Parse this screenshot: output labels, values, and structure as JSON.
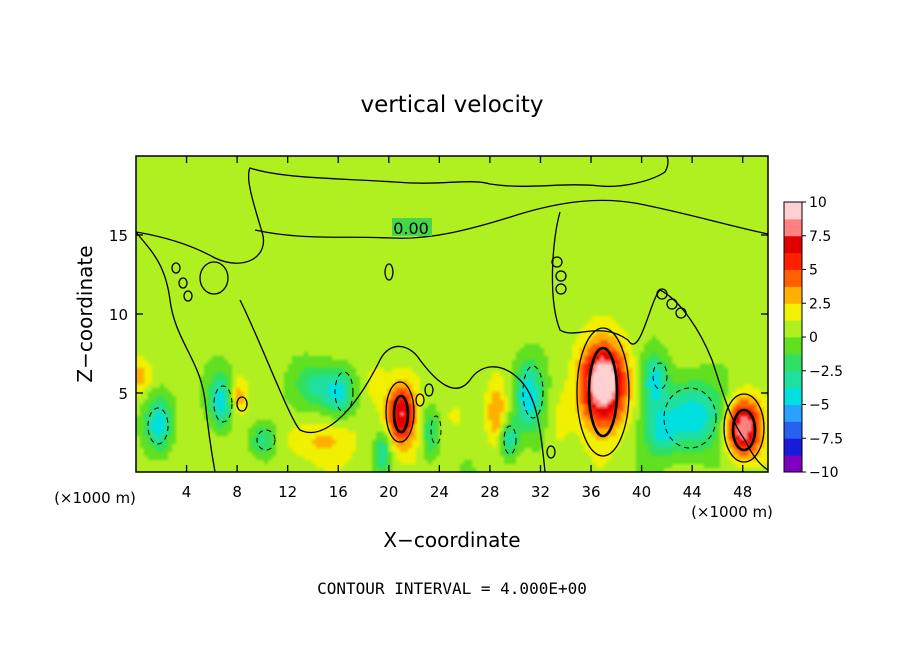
{
  "chart_data": {
    "type": "heatmap",
    "title": "vertical velocity",
    "xlabel": "X−coordinate",
    "ylabel": "Z−coordinate",
    "x_unit_label": "(×1000 m)",
    "x_ticks": [
      4,
      8,
      12,
      16,
      20,
      24,
      28,
      32,
      36,
      40,
      44,
      48
    ],
    "y_ticks": [
      5,
      10,
      15
    ],
    "xlim": [
      0,
      50
    ],
    "ylim": [
      0,
      20
    ],
    "colorbar": {
      "ticks": [
        "10",
        "7.5",
        "5",
        "2.5",
        "0",
        "−2.5",
        "−5",
        "−7.5",
        "−10"
      ],
      "range": [
        -10,
        10
      ],
      "colors": [
        "#8000c0",
        "#1a1ad8",
        "#2860f0",
        "#2aa0ff",
        "#00e0e0",
        "#20e0a0",
        "#30e060",
        "#60e020",
        "#b0f020",
        "#f0f000",
        "#ffb000",
        "#ff6000",
        "#ff2000",
        "#e00000",
        "#ff8080",
        "#ffd0d0"
      ]
    },
    "contour_label": "0.00",
    "contour_interval_text": "CONTOUR INTERVAL = 4.000E+00",
    "background_value": 0.5,
    "features": [
      {
        "x": 37.0,
        "z": 5.5,
        "w": 8.0,
        "sx": 1.4,
        "sz": 1.9
      },
      {
        "x": 37.0,
        "z": 5.8,
        "w": 4.0,
        "sx": 0.7,
        "sz": 1.0
      },
      {
        "x": 48.0,
        "z": 2.8,
        "w": 9.0,
        "sx": 1.0,
        "sz": 1.3
      },
      {
        "x": 21.0,
        "z": 3.6,
        "w": 7.0,
        "sx": 0.8,
        "sz": 1.4
      },
      {
        "x": 33.5,
        "z": 3.0,
        "w": 1.5,
        "sx": 0.6,
        "sz": 1.5
      },
      {
        "x": 25.5,
        "z": 3.5,
        "w": 1.2,
        "sx": 1.0,
        "sz": 1.2
      },
      {
        "x": 28.5,
        "z": 3.8,
        "w": 3.0,
        "sx": 0.6,
        "sz": 1.4
      },
      {
        "x": 19.0,
        "z": 5.5,
        "w": 1.5,
        "sx": 0.8,
        "sz": 1.3
      },
      {
        "x": 5.0,
        "z": 2.0,
        "w": 1.2,
        "sx": 1.5,
        "sz": 1.2
      },
      {
        "x": 0.3,
        "z": 6.0,
        "w": 2.5,
        "sx": 0.6,
        "sz": 0.8
      },
      {
        "x": 8.0,
        "z": 4.8,
        "w": 3.0,
        "sx": 0.5,
        "sz": 0.8
      },
      {
        "x": 14.0,
        "z": 2.0,
        "w": 2.0,
        "sx": 2.5,
        "sz": 1.0
      },
      {
        "x": 1.8,
        "z": 3.0,
        "w": -5.5,
        "sx": 0.8,
        "sz": 1.3
      },
      {
        "x": 6.8,
        "z": 4.5,
        "w": -5.0,
        "sx": 0.7,
        "sz": 1.3
      },
      {
        "x": 10.0,
        "z": 2.0,
        "w": -4.0,
        "sx": 0.8,
        "sz": 0.8
      },
      {
        "x": 16.0,
        "z": 5.0,
        "w": -5.0,
        "sx": 0.9,
        "sz": 1.1
      },
      {
        "x": 19.5,
        "z": 1.2,
        "w": -4.0,
        "sx": 0.4,
        "sz": 0.8
      },
      {
        "x": 23.3,
        "z": 2.5,
        "w": -3.5,
        "sx": 0.5,
        "sz": 1.2
      },
      {
        "x": 31.0,
        "z": 4.8,
        "w": -5.5,
        "sx": 0.8,
        "sz": 1.6
      },
      {
        "x": 29.5,
        "z": 2.0,
        "w": -4.5,
        "sx": 0.5,
        "sz": 0.9
      },
      {
        "x": 44.0,
        "z": 3.5,
        "w": -5.5,
        "sx": 1.8,
        "sz": 1.6
      },
      {
        "x": 41.0,
        "z": 5.8,
        "w": -4.5,
        "sx": 0.7,
        "sz": 1.2
      },
      {
        "x": 41.5,
        "z": 2.5,
        "w": -3.0,
        "sx": 0.9,
        "sz": 1.0
      },
      {
        "x": 14.0,
        "z": 5.5,
        "w": -3.0,
        "sx": 1.0,
        "sz": 1.0
      }
    ]
  }
}
